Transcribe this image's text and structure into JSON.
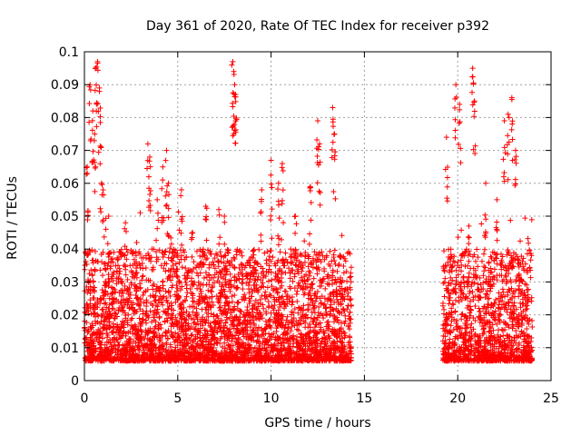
{
  "chart_data": {
    "type": "scatter",
    "title": "Day 361 of 2020, Rate Of TEC Index for receiver p392",
    "xlabel": "GPS time / hours",
    "ylabel": "ROTI / TECUs",
    "xlim": [
      0,
      25
    ],
    "ylim": [
      0,
      0.1
    ],
    "xticks": [
      0,
      5,
      10,
      15,
      20,
      25
    ],
    "xtick_labels": [
      "0",
      "5",
      "10",
      "15",
      "20",
      "25"
    ],
    "yticks": [
      0,
      0.01,
      0.02,
      0.03,
      0.04,
      0.05,
      0.06,
      0.07,
      0.08,
      0.09,
      0.1
    ],
    "ytick_labels": [
      "0",
      "0.01",
      "0.02",
      "0.03",
      "0.04",
      "0.05",
      "0.06",
      "0.07",
      "0.08",
      "0.09",
      "0.1"
    ],
    "grid": true,
    "marker": "+",
    "series": [
      {
        "name": "ROTI",
        "color": "#ff0000",
        "segments": [
          [
            0.0,
            14.3
          ],
          [
            19.2,
            24.0
          ]
        ],
        "x": [
          0.15,
          0.3,
          0.45,
          0.55,
          0.6,
          0.7,
          0.8,
          0.9,
          1.0,
          1.3,
          1.8,
          2.2,
          2.8,
          3.4,
          3.5,
          3.9,
          4.2,
          4.4,
          4.5,
          5.2,
          5.8,
          6.5,
          7.2,
          7.5,
          7.95,
          8.0,
          8.05,
          8.1,
          9.5,
          10.0,
          10.4,
          10.6,
          11.3,
          12.1,
          12.5,
          12.6,
          13.3,
          13.4,
          19.4,
          19.9,
          20.1,
          20.6,
          20.8,
          20.9,
          21.5,
          22.1,
          22.5,
          22.7,
          22.9,
          23.1
        ],
        "y": [
          0.065,
          0.09,
          0.082,
          0.075,
          0.095,
          0.097,
          0.089,
          0.071,
          0.058,
          0.05,
          0.035,
          0.048,
          0.042,
          0.072,
          0.068,
          0.055,
          0.065,
          0.07,
          0.06,
          0.058,
          0.045,
          0.053,
          0.052,
          0.05,
          0.097,
          0.094,
          0.09,
          0.087,
          0.058,
          0.067,
          0.06,
          0.066,
          0.05,
          0.059,
          0.079,
          0.072,
          0.083,
          0.075,
          0.074,
          0.09,
          0.084,
          0.047,
          0.095,
          0.085,
          0.06,
          0.055,
          0.079,
          0.081,
          0.086,
          0.07
        ]
      }
    ]
  }
}
